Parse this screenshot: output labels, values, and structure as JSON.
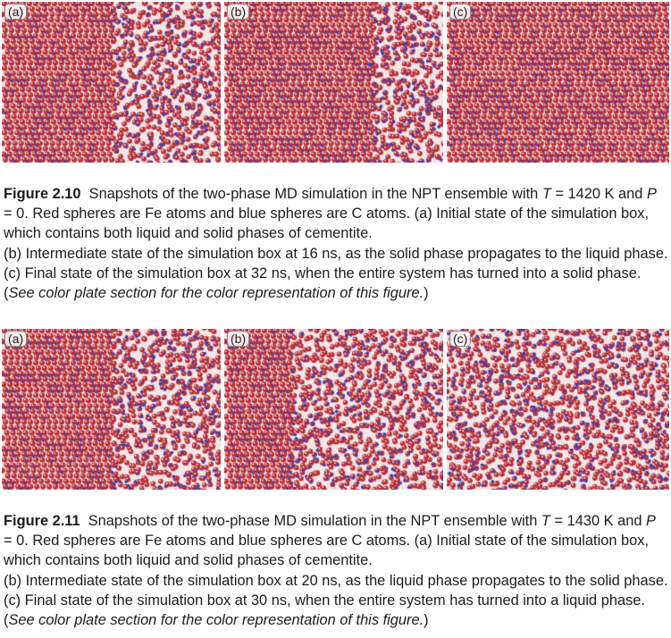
{
  "figures": [
    {
      "label": "Figure 2.10",
      "panels": [
        {
          "tag": "(a)",
          "state": "liquid-center"
        },
        {
          "tag": "(b)",
          "state": "liquid-right-band"
        },
        {
          "tag": "(c)",
          "state": "solid"
        }
      ],
      "caption": {
        "part1": "Snapshots of the two-phase MD simulation in the NPT ensemble with",
        "T_sym": "T",
        "part2": " = 1420 K and ",
        "P_sym": "P",
        "part3": " = 0. Red spheres are Fe atoms and blue spheres are C atoms. (a) Initial state of the simulation box, which contains both liquid and solid phases of cementite.",
        "part4": "(b) Intermediate state of the simulation box at 16 ns, as the solid phase propagates to the liquid phase. (c) Final state of the simulation box at 32 ns, when the entire system has turned into a solid phase. (",
        "italic": "See color plate section for the color representation of this figure.",
        "part5": ")"
      }
    },
    {
      "label": "Figure 2.11",
      "panels": [
        {
          "tag": "(a)",
          "state": "liquid-right-half"
        },
        {
          "tag": "(b)",
          "state": "liquid-growing"
        },
        {
          "tag": "(c)",
          "state": "liquid"
        }
      ],
      "caption": {
        "part1": "Snapshots of the two-phase MD simulation in the NPT ensemble with",
        "T_sym": "T",
        "part2": " = 1430 K and ",
        "P_sym": "P",
        "part3": " = 0. Red spheres are Fe atoms and blue spheres are C atoms. (a) Initial state of the simulation box, which contains both liquid and solid phases of cementite.",
        "part4": "(b) Intermediate state of the simulation box at 20 ns, as the liquid phase propagates to the solid phase. (c) Final state of the simulation box at 30 ns, when the entire system has turned into a liquid phase. (",
        "italic": "See color plate section for the color representation of this figure.",
        "part5": ")"
      }
    }
  ],
  "colors": {
    "fe_atom": "#b8323a",
    "c_atom": "#4a3fa8",
    "highlight": "#fbe9ea"
  }
}
